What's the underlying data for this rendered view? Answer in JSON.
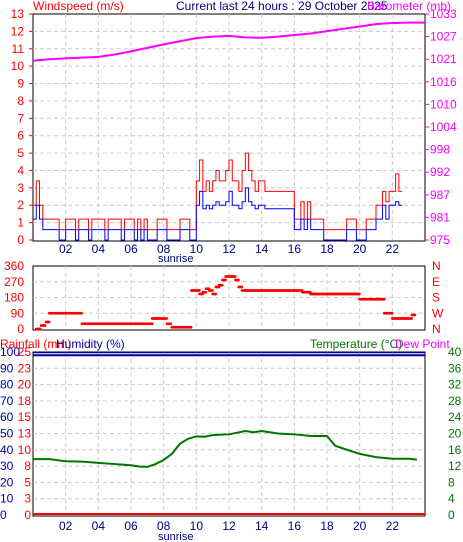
{
  "header": {
    "left_label": "Windspeed (m/s)",
    "center_label": "Current last 24 hours : 29 October 2025",
    "right_label": "Barometer (mb)"
  },
  "bottom_header": {
    "rainfall_label": "Rainfall (mm)",
    "humidity_label": "Humidity (%)",
    "temperature_label": "Temperature (°C)",
    "dewpoint_label": "Dew Point"
  },
  "sunrise_label": "sunrise",
  "colors": {
    "windspeed": "#ff0000",
    "gust": "#ff0000",
    "average": "#0000ff",
    "barometer": "#ff00ff",
    "direction": "#ff0000",
    "temperature": "#007700",
    "humidity": "#0000aa",
    "rainfall": "#ff0000",
    "dewpoint": "#ff00ff",
    "grid": "#cccccc",
    "frame": "#000000"
  },
  "chart_data": [
    {
      "type": "line",
      "name": "windspeed-barometer",
      "x_tick_labels": [
        "02",
        "04",
        "06",
        "08",
        "10",
        "12",
        "14",
        "16",
        "18",
        "20",
        "22"
      ],
      "x_ticks": [
        2,
        4,
        6,
        8,
        10,
        12,
        14,
        16,
        18,
        20,
        22
      ],
      "xlim": [
        0,
        24
      ],
      "ylim": [
        0,
        13
      ],
      "y_ticks": [
        0,
        1,
        2,
        3,
        4,
        5,
        6,
        7,
        8,
        9,
        10,
        11,
        12,
        13
      ],
      "y2_ticks": [
        975,
        981,
        987,
        992,
        998,
        1004,
        1010,
        1016,
        1021,
        1027,
        1033
      ],
      "y2lim": [
        975,
        1033
      ],
      "gust_x": [
        0,
        0.2,
        0.4,
        0.6,
        0.8,
        1,
        1.2,
        1.4,
        1.6,
        1.8,
        2,
        2.2,
        2.4,
        2.6,
        2.8,
        3,
        3.2,
        3.4,
        3.6,
        3.8,
        4,
        4.2,
        4.4,
        4.6,
        4.8,
        5,
        5.2,
        5.4,
        5.6,
        5.8,
        6,
        6.2,
        6.4,
        6.6,
        6.8,
        7,
        7.2,
        7.4,
        7.6,
        7.8,
        8,
        8.2,
        8.4,
        8.6,
        8.8,
        9,
        9.2,
        9.4,
        9.6,
        9.8,
        10,
        10.2,
        10.4,
        10.6,
        10.8,
        11,
        11.2,
        11.4,
        11.6,
        11.8,
        12,
        12.2,
        12.4,
        12.6,
        12.8,
        13,
        13.2,
        13.4,
        13.6,
        13.8,
        14,
        14.2,
        14.4,
        14.6,
        14.8,
        15,
        15.2,
        15.4,
        15.6,
        15.8,
        16,
        16.2,
        16.4,
        16.6,
        16.8,
        17,
        17.2,
        17.4,
        17.6,
        17.8,
        18,
        18.2,
        18.4,
        18.6,
        18.8,
        19,
        19.2,
        19.4,
        19.6,
        19.8,
        20,
        20.2,
        20.4,
        20.6,
        20.8,
        21,
        21.2,
        21.4,
        21.6,
        21.8,
        22,
        22.2,
        22.4,
        22.6,
        22.8,
        23,
        23.2
      ],
      "gust": [
        2,
        3.4,
        2,
        1.2,
        1.2,
        1.2,
        1.2,
        1.2,
        0.6,
        0.6,
        1.2,
        1.2,
        1.2,
        0.6,
        1.2,
        1.2,
        1.2,
        0.6,
        1.2,
        1.2,
        1.2,
        1.2,
        0.6,
        1.2,
        1.2,
        1.2,
        1.2,
        0.6,
        1.2,
        1.2,
        1.2,
        0.6,
        1.2,
        0.6,
        1.2,
        0.6,
        0.6,
        0.6,
        1.2,
        1.2,
        1.2,
        0.6,
        0.6,
        0.6,
        0.6,
        1.2,
        1.2,
        1.2,
        0.6,
        0.6,
        3.4,
        4.6,
        2.8,
        3.4,
        2.8,
        3.4,
        4,
        3.4,
        3.4,
        4,
        4.6,
        3.4,
        3.4,
        2.8,
        4,
        5,
        4,
        3.4,
        2.8,
        3.4,
        3.4,
        2.8,
        2.8,
        2.8,
        2.8,
        2.8,
        2.8,
        2.8,
        2.8,
        2.8,
        1.2,
        1.2,
        2.2,
        1.2,
        2.2,
        1.2,
        1.2,
        1.2,
        1.2,
        0.6,
        0.6,
        0.6,
        0.6,
        0.6,
        0.6,
        0.6,
        1.2,
        1.2,
        1.2,
        0.6,
        0.6,
        0.6,
        1.2,
        1.2,
        1.2,
        2,
        2,
        2.8,
        2.2,
        2.8,
        2.8,
        3.8,
        2.8
      ],
      "average": [
        1.2,
        2,
        1.2,
        0.6,
        0.6,
        0.6,
        0.6,
        0.6,
        0,
        0,
        0.6,
        0.6,
        0.6,
        0,
        0.6,
        0.6,
        0.6,
        0,
        0.6,
        0.6,
        0.6,
        0.6,
        0,
        0.6,
        0.6,
        0.6,
        0.6,
        0,
        0.6,
        0.6,
        0.6,
        0,
        0.6,
        0,
        0.6,
        0,
        0,
        0,
        0.6,
        0.6,
        0.6,
        0,
        0,
        0,
        0,
        0.6,
        0.6,
        0.6,
        0,
        0,
        2,
        2.8,
        1.8,
        2,
        1.8,
        2,
        2.2,
        2,
        2,
        2.2,
        2.8,
        2,
        2,
        1.8,
        2.2,
        3,
        2.2,
        2,
        1.8,
        2,
        2,
        1.8,
        1.8,
        1.8,
        1.8,
        1.8,
        1.8,
        1.8,
        1.8,
        1.8,
        0.6,
        0.6,
        1.2,
        0.6,
        1.2,
        0.6,
        0.6,
        0.6,
        0.6,
        0,
        0,
        0,
        0,
        0,
        0,
        0,
        0.6,
        0.6,
        0.6,
        0,
        0,
        0,
        0.6,
        0.6,
        0.6,
        1.2,
        1.2,
        2,
        1.2,
        2,
        2,
        2.2,
        2
      ],
      "barometer_x": [
        0,
        1,
        2,
        3,
        4,
        5,
        6,
        7,
        8,
        9,
        10,
        11,
        12,
        13,
        14,
        15,
        16,
        17,
        18,
        19,
        20,
        21,
        22,
        23,
        24
      ],
      "barometer": [
        1021,
        1021.4,
        1021.6,
        1021.8,
        1022,
        1022.6,
        1023.4,
        1024.3,
        1025.2,
        1026,
        1026.8,
        1027.2,
        1027.4,
        1027,
        1026.9,
        1027.2,
        1027.6,
        1028,
        1028.6,
        1029.2,
        1029.8,
        1030.4,
        1030.7,
        1030.8,
        1030.8
      ]
    },
    {
      "type": "scatter",
      "name": "wind-direction",
      "ylim": [
        0,
        360
      ],
      "y_ticks": [
        0,
        90,
        180,
        270,
        360
      ],
      "compass_labels": [
        "N",
        "W",
        "S",
        "E",
        "N"
      ],
      "x": [
        0.2,
        0.5,
        0.8,
        1,
        1.5,
        2,
        2.5,
        3,
        4,
        5,
        6,
        7,
        7.3,
        7.6,
        8,
        8.2,
        8.5,
        9,
        9.5,
        9.7,
        10,
        10.2,
        10.4,
        10.6,
        10.8,
        11,
        11.2,
        11.4,
        11.6,
        11.8,
        12,
        12.2,
        12.4,
        12.6,
        12.8,
        13,
        13.5,
        14,
        14.5,
        15,
        15.5,
        16,
        16.5,
        17,
        17.5,
        18,
        18.5,
        19,
        19.5,
        20,
        20.5,
        21,
        21.2,
        21.5,
        22,
        22.5,
        23,
        23.2
      ],
      "y": [
        0,
        20,
        40,
        90,
        90,
        90,
        90,
        30,
        30,
        30,
        30,
        30,
        60,
        60,
        60,
        30,
        10,
        10,
        10,
        220,
        220,
        200,
        210,
        230,
        220,
        200,
        240,
        250,
        280,
        300,
        300,
        300,
        280,
        240,
        220,
        220,
        220,
        220,
        220,
        220,
        220,
        220,
        210,
        200,
        200,
        200,
        200,
        200,
        200,
        170,
        170,
        170,
        170,
        90,
        60,
        60,
        60,
        80
      ]
    },
    {
      "type": "line",
      "name": "temperature-humidity-rainfall",
      "xlim": [
        0,
        24
      ],
      "y_left_ticks": [
        0,
        10,
        20,
        30,
        40,
        50,
        60,
        70,
        80,
        90,
        100
      ],
      "rain_ticks": [
        0,
        3,
        5,
        8,
        10,
        13,
        15,
        18,
        20,
        23,
        25
      ],
      "temp_ticks": [
        0,
        4,
        8,
        12,
        16,
        20,
        24,
        28,
        32,
        36,
        40
      ],
      "ylim": [
        0,
        100
      ],
      "y2lim": [
        0,
        40
      ],
      "temperature_x": [
        0,
        1,
        2,
        3,
        4,
        5,
        6,
        6.5,
        7,
        7.5,
        8,
        8.5,
        9,
        9.5,
        10,
        10.5,
        11,
        12,
        12.5,
        13,
        13.5,
        14,
        15,
        16,
        17,
        18,
        18.5,
        19,
        20,
        21,
        22,
        23,
        23.5
      ],
      "temperature": [
        13.7,
        13.7,
        13.2,
        13.1,
        12.8,
        12.5,
        12.2,
        11.9,
        11.8,
        12.5,
        13.5,
        15,
        17.5,
        18.7,
        19.3,
        19.2,
        19.6,
        19.8,
        20.2,
        20.6,
        20.3,
        20.6,
        20,
        19.8,
        19.4,
        19.4,
        17,
        16.3,
        15,
        14.2,
        13.8,
        13.8,
        13.6
      ],
      "humidity": 98,
      "rainfall": 0
    }
  ]
}
